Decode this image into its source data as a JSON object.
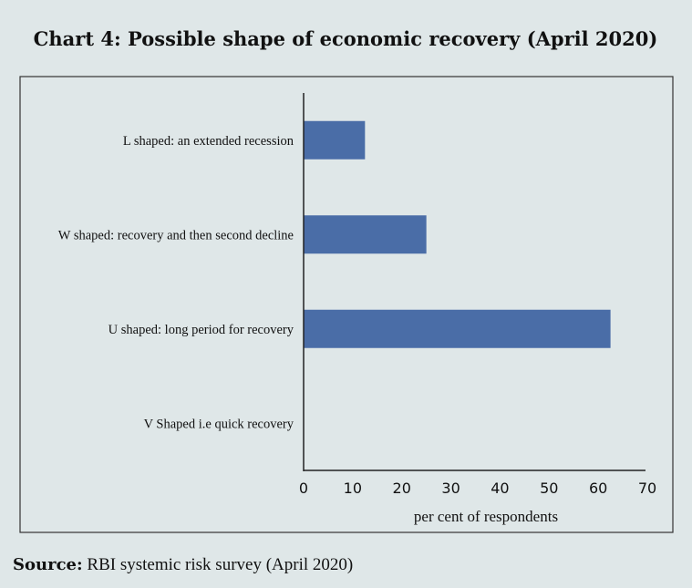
{
  "chart_data": {
    "type": "bar",
    "orientation": "horizontal",
    "title": "Chart 4: Possible shape of economic recovery (April 2020)",
    "categories": [
      "L shaped: an extended recession",
      "W shaped: recovery and then second decline",
      "U shaped: long period for recovery",
      "V Shaped i.e quick recovery"
    ],
    "values": [
      12.5,
      25,
      62.5,
      0
    ],
    "xlabel": "per cent of respondents",
    "ylabel": "",
    "xlim": [
      0,
      70
    ],
    "xticks": [
      "0",
      "10",
      "20",
      "30",
      "40",
      "50",
      "60",
      "70"
    ],
    "grid": false,
    "bar_color": "#4a6da7"
  },
  "source": {
    "label": "Source:",
    "text": " RBI systemic risk survey (April 2020)"
  }
}
